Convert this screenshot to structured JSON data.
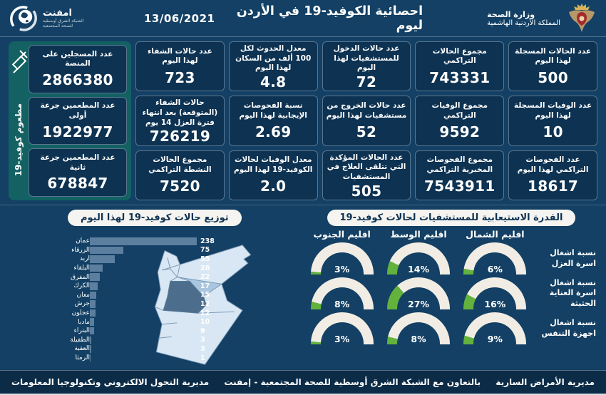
{
  "header": {
    "emphnet": {
      "name": "امفنت",
      "line1": "الشبكة الشرق أوسطية",
      "line2": "للصحة المجتمعية"
    },
    "title": "احصائية الكوفيد-19 في الأردن ليوم",
    "date": "13/06/2021",
    "ministry": {
      "line1": "وزارة الصحة",
      "line2": "المملكة الأردنية الهاشمية"
    }
  },
  "vaccine_panel": {
    "side_label": "مطعوم كوفيد-19",
    "icon": "syringe-icon",
    "cards": [
      {
        "label": "عدد المسجلين على المنصة",
        "value": "2866380"
      },
      {
        "label": "عدد المطعمين جرعة أولى",
        "value": "1922977"
      },
      {
        "label": "عدد المطعمين جرعة ثانية",
        "value": "678847"
      }
    ]
  },
  "stat_cards": [
    {
      "label": "عدد الحالات المسجلة لهذا اليوم",
      "value": "500"
    },
    {
      "label": "مجموع الحالات التراكمي",
      "value": "743331"
    },
    {
      "label": "عدد حالات الدخول للمستشفيات لهذا اليوم",
      "value": "72"
    },
    {
      "label": "معدل الحدوث لكل 100 ألف من السكان لهذا اليوم",
      "value": "4.8"
    },
    {
      "label": "عدد حالات الشفاء لهذا اليوم",
      "value": "723"
    },
    {
      "label": "عدد الوفيات المسجلة لهذا اليوم",
      "value": "10"
    },
    {
      "label": "مجموع الوفيات التراكمي",
      "value": "9592"
    },
    {
      "label": "عدد حالات الخروج من مستشفيات لهذا اليوم",
      "value": "52"
    },
    {
      "label": "نسبة الفحوصات الإيجابية لهذا اليوم",
      "value": "2.69"
    },
    {
      "label": "حالات الشفاء (المتوقعة) بعد انتهاء فترة العزل 14 يوم",
      "value": "726219"
    },
    {
      "label": "عدد الفحوصات التراكمي لهذا اليوم",
      "value": "18617"
    },
    {
      "label": "مجموع الفحوصات المخبرية التراكمي",
      "value": "7543911"
    },
    {
      "label": "عدد الحالات المؤكدة التي تتلقى العلاج في المستشفيات",
      "value": "505"
    },
    {
      "label": "معدل الوفيات لحالات الكوفيد-19 لهذا اليوم",
      "value": "2.0"
    },
    {
      "label": "مجموع الحالات النشطة التراكمي",
      "value": "7520"
    }
  ],
  "chart_data": [
    {
      "type": "bar",
      "orientation": "horizontal",
      "title": "توزيع حالات كوفيد-19 لهذا اليوم",
      "categories": [
        "عمان",
        "الزرقاء",
        "اربد",
        "البلقاء",
        "المفرق",
        "الكرك",
        "معان",
        "جرش",
        "عجلون",
        "مادبا",
        "البتراء",
        "الطفيلة",
        "العقبة",
        "الرمثا"
      ],
      "values": [
        238,
        75,
        55,
        28,
        22,
        17,
        15,
        12,
        12,
        10,
        9,
        3,
        3,
        1
      ],
      "xlim": [
        0,
        238
      ],
      "value_labels": true,
      "legend": "none",
      "grid": false
    },
    {
      "type": "gauge",
      "title": "القدرة الاستيعابية للمستشفيات لحالات كوفيد-19",
      "unit": "%",
      "range": [
        0,
        100
      ],
      "columns": [
        "اقليم الشمال",
        "اقليم الوسط",
        "اقليم الجنوب"
      ],
      "rows": [
        {
          "label": "نسبة اشغال اسرة العزل",
          "values": [
            6,
            14,
            3
          ]
        },
        {
          "label": "نسبة اشغال اسرة العناية الحثيثة",
          "values": [
            16,
            27,
            8
          ]
        },
        {
          "label": "نسبة اشغال اجهزة التنفس",
          "values": [
            9,
            8,
            3
          ]
        }
      ]
    }
  ],
  "footer": {
    "right": "مديرية الأمراض السارية",
    "center": "بالتعاون مع الشبكة الشرق أوسطية للصحة المجتمعية - إمفنت",
    "left": "مديرية التحول الالكتروني وتكنولوجيا المعلومات"
  },
  "colors": {
    "background": "#134064",
    "card": "#0d3252",
    "teal_panel": "#136163",
    "bar": "#5c7f9f",
    "gauge_green": "#63b23e",
    "gauge_track": "#f1ede4",
    "map_light": "#d9e7f4",
    "map_amman": "#4d6d8c",
    "map_zarqa": "#a9c6e0"
  }
}
